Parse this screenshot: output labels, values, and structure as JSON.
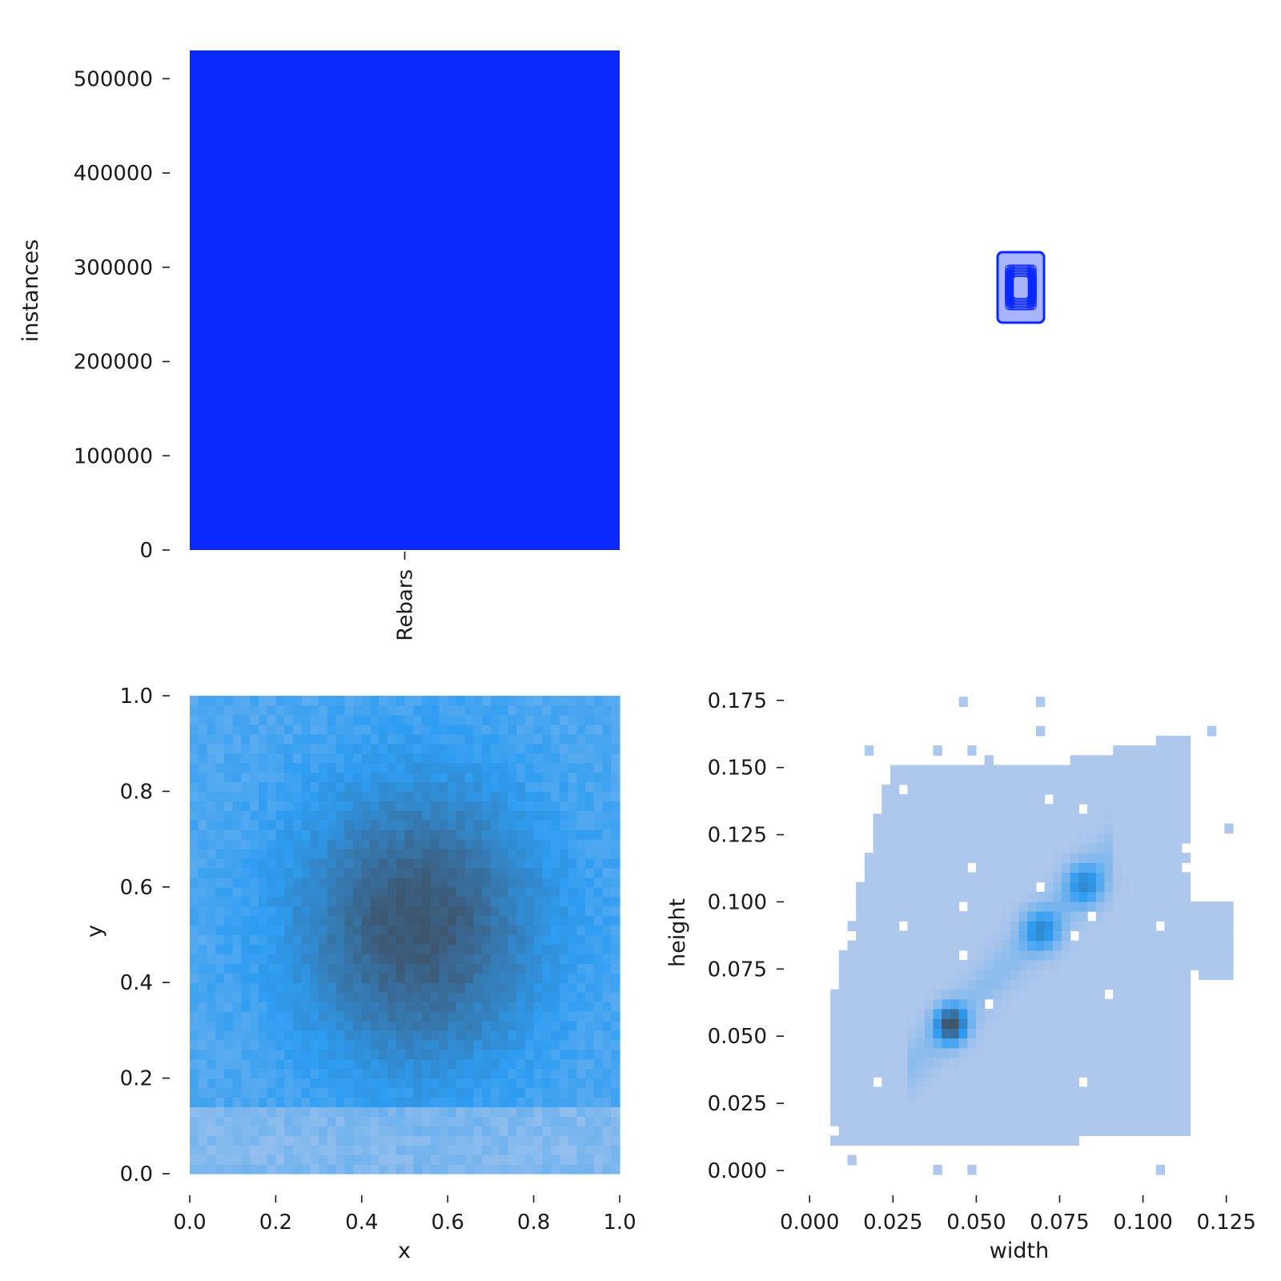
{
  "colors": {
    "bar": "#0a28ff",
    "box_edge": "#0a28ff",
    "heat_low": "#aec7ec",
    "heat_mid": "#2e9df2",
    "heat_high": "#3d5670"
  },
  "chart_data": [
    {
      "id": "class-count",
      "type": "bar",
      "categories": [
        "Rebars"
      ],
      "values": [
        530000
      ],
      "xlabel": "",
      "ylabel": "instances",
      "ylim": [
        0,
        530000
      ],
      "yticks": [
        0,
        100000,
        200000,
        300000,
        400000,
        500000
      ],
      "ytick_labels": [
        "0",
        "100000",
        "200000",
        "300000",
        "400000",
        "500000"
      ],
      "grid": false
    },
    {
      "id": "box-overlay",
      "type": "scatter",
      "description_of_marks": "overlaid bounding-box outlines centred on one point",
      "box_widths": [
        0.028,
        0.032,
        0.036,
        0.04,
        0.044,
        0.048,
        0.052,
        0.056
      ],
      "box_heights": [
        0.04,
        0.046,
        0.052,
        0.058,
        0.064,
        0.07,
        0.076,
        0.082
      ],
      "xlim": [
        0,
        1
      ],
      "ylim": [
        0,
        1
      ],
      "axes_visible": false
    },
    {
      "id": "xy-density",
      "type": "heatmap",
      "xlabel": "x",
      "ylabel": "y",
      "xlim": [
        0,
        1
      ],
      "ylim": [
        0,
        1
      ],
      "xticks": [
        0.0,
        0.2,
        0.4,
        0.6,
        0.8,
        1.0
      ],
      "xtick_labels": [
        "0.0",
        "0.2",
        "0.4",
        "0.6",
        "0.8",
        "1.0"
      ],
      "yticks": [
        0.0,
        0.2,
        0.4,
        0.6,
        0.8,
        1.0
      ],
      "ytick_labels": [
        "0.0",
        "0.2",
        "0.4",
        "0.6",
        "0.8",
        "1.0"
      ],
      "peak_center": [
        0.53,
        0.52
      ],
      "bins": 50,
      "grid": false
    },
    {
      "id": "wh-density",
      "type": "heatmap",
      "xlabel": "width",
      "ylabel": "height",
      "xlim": [
        -0.0015,
        0.127
      ],
      "ylim": [
        -0.0015,
        0.18
      ],
      "xticks": [
        0.0,
        0.025,
        0.05,
        0.075,
        0.1,
        0.125
      ],
      "xtick_labels": [
        "0.000",
        "0.025",
        "0.050",
        "0.075",
        "0.100",
        "0.125"
      ],
      "yticks": [
        0.0,
        0.025,
        0.05,
        0.075,
        0.1,
        0.125,
        0.15,
        0.175
      ],
      "ytick_labels": [
        "0.000",
        "0.025",
        "0.050",
        "0.075",
        "0.100",
        "0.125",
        "0.150",
        "0.175"
      ],
      "hotspots": [
        {
          "width": 0.0425,
          "height": 0.0545,
          "level": "high"
        },
        {
          "width": 0.0695,
          "height": 0.0895,
          "level": "mid"
        },
        {
          "width": 0.0825,
          "height": 0.1065,
          "level": "mid"
        }
      ],
      "grid": false
    }
  ]
}
